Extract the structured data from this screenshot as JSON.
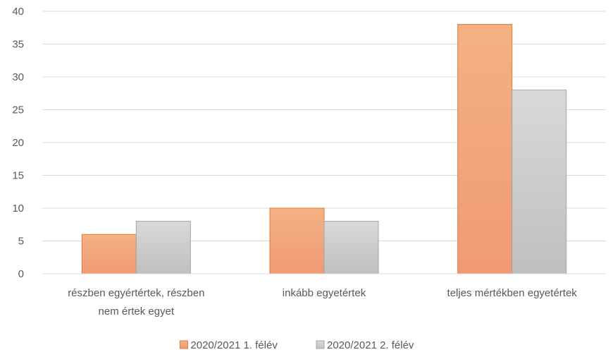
{
  "chart_data": {
    "type": "bar",
    "title": "",
    "xlabel": "",
    "ylabel": "",
    "categories": [
      [
        "részben egyértértek, részben",
        "nem értek egyet"
      ],
      [
        "inkább egyetértek"
      ],
      [
        "teljes mértékben egyetértek"
      ]
    ],
    "series": [
      {
        "name": "2020/2021 1. félév",
        "values": [
          6,
          10,
          38
        ],
        "color": "#F4B183",
        "color_bottom": "#F09A73",
        "stroke": "#E07B39"
      },
      {
        "name": "2020/2021 2. félév",
        "values": [
          8,
          8,
          28
        ],
        "color": "#D9D9D9",
        "color_bottom": "#BFBFBF",
        "stroke": "#A6A6A6"
      }
    ],
    "ylim": [
      0,
      40
    ],
    "yticks": [
      0,
      5,
      10,
      15,
      20,
      25,
      30,
      35,
      40
    ],
    "grid": true,
    "legend": "bottom-center"
  }
}
